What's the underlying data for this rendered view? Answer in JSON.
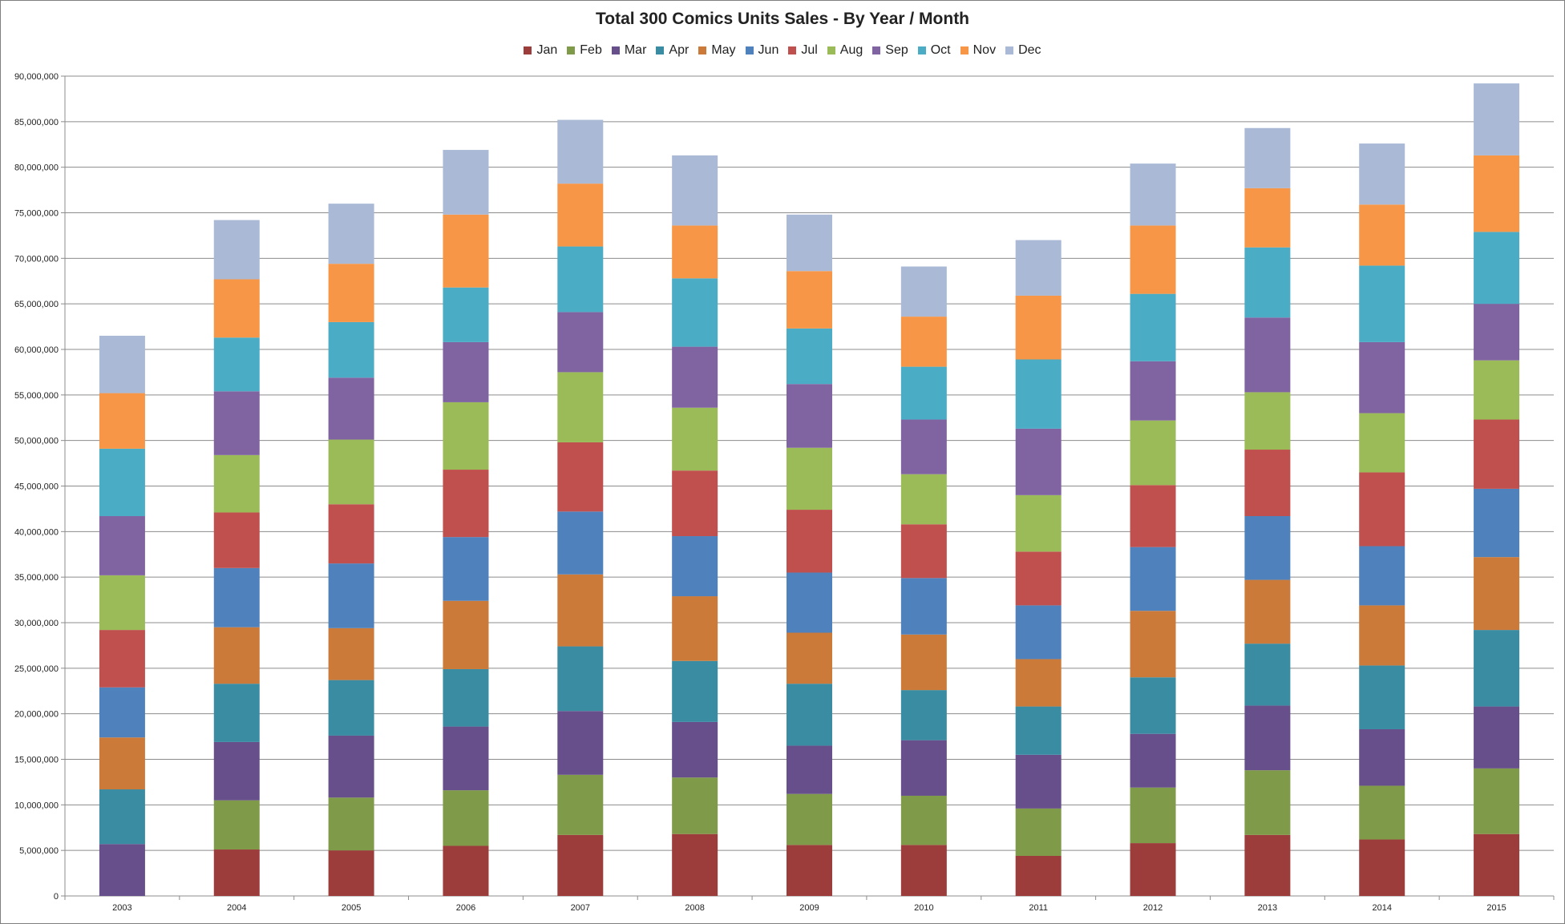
{
  "chart_data": {
    "type": "bar",
    "stacked": true,
    "title": "Total 300 Comics Units Sales - By Year / Month",
    "xlabel": "",
    "ylabel": "",
    "ylim": [
      0,
      90000000
    ],
    "y_ticks": [
      0,
      5000000,
      10000000,
      15000000,
      20000000,
      25000000,
      30000000,
      35000000,
      40000000,
      45000000,
      50000000,
      55000000,
      60000000,
      65000000,
      70000000,
      75000000,
      80000000,
      85000000,
      90000000
    ],
    "y_tick_labels": [
      "0",
      "5,000,000",
      "10,000,000",
      "15,000,000",
      "20,000,000",
      "25,000,000",
      "30,000,000",
      "35,000,000",
      "40,000,000",
      "45,000,000",
      "50,000,000",
      "55,000,000",
      "60,000,000",
      "65,000,000",
      "70,000,000",
      "75,000,000",
      "80,000,000",
      "85,000,000",
      "90,000,000"
    ],
    "grid": true,
    "legend_position": "top",
    "categories": [
      "2003",
      "2004",
      "2005",
      "2006",
      "2007",
      "2008",
      "2009",
      "2010",
      "2011",
      "2012",
      "2013",
      "2014",
      "2015"
    ],
    "series": [
      {
        "name": "Jan",
        "color": "#9c3c3b",
        "values": [
          0,
          5100000,
          5000000,
          5500000,
          6700000,
          6800000,
          5600000,
          5600000,
          4400000,
          5800000,
          6700000,
          6200000,
          6800000
        ]
      },
      {
        "name": "Feb",
        "color": "#7f9a48",
        "values": [
          0,
          5400000,
          5800000,
          6100000,
          6600000,
          6200000,
          5600000,
          5400000,
          5200000,
          6100000,
          7100000,
          5900000,
          7200000
        ]
      },
      {
        "name": "Mar",
        "color": "#664f8a",
        "values": [
          5700000,
          6400000,
          6800000,
          7000000,
          7000000,
          6100000,
          5300000,
          6100000,
          5900000,
          5900000,
          7100000,
          6200000,
          6800000
        ]
      },
      {
        "name": "Apr",
        "color": "#3a8ca3",
        "values": [
          6000000,
          6400000,
          6100000,
          6300000,
          7100000,
          6700000,
          6800000,
          5500000,
          5300000,
          6200000,
          6800000,
          7000000,
          8400000
        ]
      },
      {
        "name": "May",
        "color": "#cc7a39",
        "values": [
          5700000,
          6200000,
          5700000,
          7500000,
          7900000,
          7100000,
          5600000,
          6100000,
          5200000,
          7300000,
          7000000,
          6600000,
          8000000
        ]
      },
      {
        "name": "Jun",
        "color": "#4f81bd",
        "values": [
          5500000,
          6500000,
          7100000,
          7000000,
          6900000,
          6600000,
          6600000,
          6200000,
          5900000,
          7000000,
          7000000,
          6500000,
          7500000
        ]
      },
      {
        "name": "Jul",
        "color": "#c0504d",
        "values": [
          6300000,
          6100000,
          6500000,
          7400000,
          7600000,
          7200000,
          6900000,
          5900000,
          5900000,
          6800000,
          7300000,
          8100000,
          7600000
        ]
      },
      {
        "name": "Aug",
        "color": "#9bbb59",
        "values": [
          6000000,
          6300000,
          7100000,
          7400000,
          7700000,
          6900000,
          6800000,
          5500000,
          6200000,
          7100000,
          6300000,
          6500000,
          6500000
        ]
      },
      {
        "name": "Sep",
        "color": "#8064a2",
        "values": [
          6500000,
          7000000,
          6800000,
          6600000,
          6600000,
          6700000,
          7000000,
          6000000,
          7300000,
          6500000,
          8200000,
          7800000,
          6200000
        ]
      },
      {
        "name": "Oct",
        "color": "#4bacc6",
        "values": [
          7400000,
          5900000,
          6100000,
          6000000,
          7200000,
          7500000,
          6100000,
          5800000,
          7600000,
          7400000,
          7700000,
          8400000,
          7900000
        ]
      },
      {
        "name": "Nov",
        "color": "#f79646",
        "values": [
          6100000,
          6400000,
          6400000,
          8000000,
          6900000,
          5800000,
          6300000,
          5500000,
          7000000,
          7500000,
          6500000,
          6700000,
          8400000
        ]
      },
      {
        "name": "Dec",
        "color": "#a9b9d6",
        "values": [
          6300000,
          6500000,
          6600000,
          7100000,
          7000000,
          7700000,
          6200000,
          5500000,
          6100000,
          6800000,
          6600000,
          6700000,
          7900000
        ]
      }
    ]
  }
}
